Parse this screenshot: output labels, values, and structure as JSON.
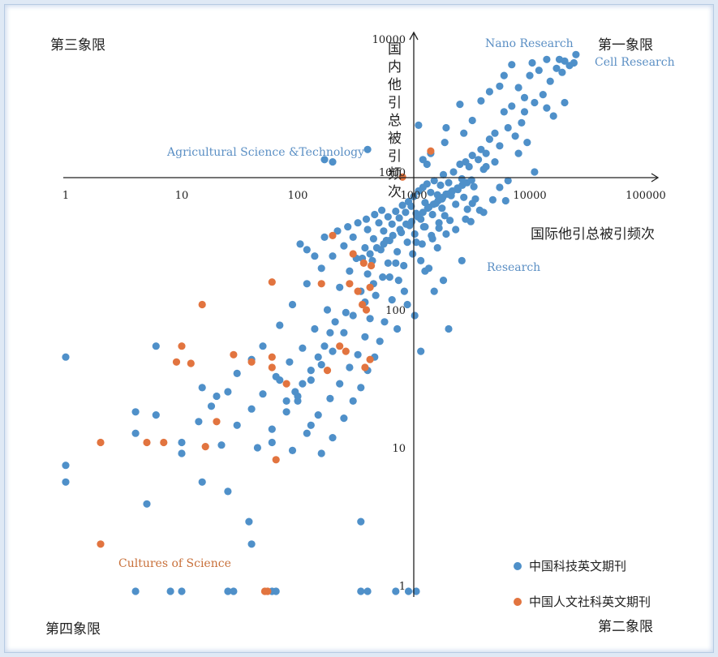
{
  "colors": {
    "science": "#4f90c9",
    "humanities": "#e2743f",
    "axis": "#222222",
    "annotation_blue": "#5b8fc4",
    "annotation_orange": "#c8703a"
  },
  "chart_data": {
    "type": "scatter",
    "x_scale": "log",
    "y_scale": "log",
    "xlabel": "国际他引总被引频次",
    "ylabel": "国内他引总被引频次",
    "x_ticks": [
      1,
      10,
      100,
      1000,
      10000,
      100000
    ],
    "y_ticks": [
      1,
      10,
      100,
      1000,
      10000
    ],
    "xlim": [
      1,
      100000
    ],
    "ylim": [
      1,
      10000
    ],
    "crosshair": {
      "x": 1000,
      "y": 1000
    },
    "legend_position": "bottom-right",
    "quadrants": {
      "q1": "第一象限",
      "q2": "第二象限",
      "q3": "第三象限",
      "q4": "第四象限"
    },
    "annotations": [
      {
        "text": "Nano Research",
        "series": "science"
      },
      {
        "text": "Cell Research",
        "series": "science"
      },
      {
        "text": "Agricultural Science &Technology",
        "series": "science"
      },
      {
        "text": "Research",
        "series": "science"
      },
      {
        "text": "Cultures of Science",
        "series": "humanities"
      }
    ],
    "series": [
      {
        "name": "中国科技英文期刊",
        "points": [
          [
            20000,
            7000
          ],
          [
            25000,
            7800
          ],
          [
            18000,
            7200
          ],
          [
            12000,
            6000
          ],
          [
            22000,
            6500
          ],
          [
            15000,
            5000
          ],
          [
            10000,
            5500
          ],
          [
            8000,
            4500
          ],
          [
            13000,
            4000
          ],
          [
            9000,
            3800
          ],
          [
            11000,
            3500
          ],
          [
            7000,
            3300
          ],
          [
            6000,
            3000
          ],
          [
            14000,
            3200
          ],
          [
            16000,
            2800
          ],
          [
            8500,
            2500
          ],
          [
            6500,
            2300
          ],
          [
            5000,
            2100
          ],
          [
            7500,
            2000
          ],
          [
            4500,
            1900
          ],
          [
            9500,
            1800
          ],
          [
            5500,
            1700
          ],
          [
            3800,
            1600
          ],
          [
            4200,
            1500
          ],
          [
            3200,
            1450
          ],
          [
            3600,
            1350
          ],
          [
            2800,
            1300
          ],
          [
            2500,
            1250
          ],
          [
            3000,
            1200
          ],
          [
            4000,
            1150
          ],
          [
            2200,
            1100
          ],
          [
            1800,
            1050
          ],
          [
            2600,
            980
          ],
          [
            1500,
            950
          ],
          [
            2000,
            920
          ],
          [
            1300,
            900
          ],
          [
            1700,
            880
          ],
          [
            3300,
            860
          ],
          [
            1200,
            850
          ],
          [
            2400,
            820
          ],
          [
            1100,
            800
          ],
          [
            1400,
            780
          ],
          [
            1900,
            760
          ],
          [
            1600,
            750
          ],
          [
            2100,
            740
          ],
          [
            1000,
            730
          ],
          [
            2700,
            720
          ],
          [
            3400,
            700
          ],
          [
            4800,
            690
          ],
          [
            6200,
            680
          ],
          [
            900,
            670
          ],
          [
            1250,
            660
          ],
          [
            1550,
            650
          ],
          [
            2300,
            640
          ],
          [
            800,
            630
          ],
          [
            950,
            620
          ],
          [
            1350,
            610
          ],
          [
            1750,
            600
          ],
          [
            2900,
            590
          ],
          [
            3700,
            580
          ],
          [
            700,
            570
          ],
          [
            850,
            560
          ],
          [
            1050,
            550
          ],
          [
            1450,
            540
          ],
          [
            1850,
            530
          ],
          [
            600,
            520
          ],
          [
            750,
            510
          ],
          [
            1150,
            500
          ],
          [
            2050,
            490
          ],
          [
            3100,
            480
          ],
          [
            500,
            470
          ],
          [
            650,
            460
          ],
          [
            920,
            450
          ],
          [
            1220,
            440
          ],
          [
            1650,
            430
          ],
          [
            400,
            420
          ],
          [
            550,
            410
          ],
          [
            780,
            400
          ],
          [
            1020,
            390
          ],
          [
            1420,
            380
          ],
          [
            300,
            370
          ],
          [
            450,
            360
          ],
          [
            620,
            350
          ],
          [
            880,
            340
          ],
          [
            1180,
            330
          ],
          [
            250,
            320
          ],
          [
            380,
            310
          ],
          [
            520,
            300
          ],
          [
            720,
            290
          ],
          [
            980,
            280
          ],
          [
            200,
            270
          ],
          [
            320,
            260
          ],
          [
            440,
            250
          ],
          [
            600,
            240
          ],
          [
            820,
            230
          ],
          [
            160,
            220
          ],
          [
            280,
            210
          ],
          [
            400,
            200
          ],
          [
            540,
            190
          ],
          [
            740,
            180
          ],
          [
            120,
            170
          ],
          [
            230,
            160
          ],
          [
            350,
            150
          ],
          [
            470,
            140
          ],
          [
            650,
            130
          ],
          [
            90,
            120
          ],
          [
            180,
            110
          ],
          [
            300,
            100
          ],
          [
            420,
            95
          ],
          [
            560,
            90
          ],
          [
            70,
            85
          ],
          [
            140,
            80
          ],
          [
            250,
            75
          ],
          [
            380,
            70
          ],
          [
            510,
            65
          ],
          [
            50,
            60
          ],
          [
            110,
            58
          ],
          [
            200,
            55
          ],
          [
            330,
            52
          ],
          [
            460,
            50
          ],
          [
            40,
            48
          ],
          [
            85,
            46
          ],
          [
            160,
            44
          ],
          [
            280,
            42
          ],
          [
            400,
            40
          ],
          [
            30,
            38
          ],
          [
            65,
            36
          ],
          [
            130,
            34
          ],
          [
            230,
            32
          ],
          [
            350,
            30
          ],
          [
            25,
            28
          ],
          [
            50,
            27
          ],
          [
            100,
            26
          ],
          [
            190,
            25
          ],
          [
            300,
            24
          ],
          [
            18,
            22
          ],
          [
            40,
            21
          ],
          [
            80,
            20
          ],
          [
            150,
            19
          ],
          [
            250,
            18
          ],
          [
            14,
            17
          ],
          [
            30,
            16
          ],
          [
            60,
            15
          ],
          [
            120,
            14
          ],
          [
            200,
            13
          ],
          [
            10,
            12
          ],
          [
            22,
            11.5
          ],
          [
            45,
            11
          ],
          [
            90,
            10.5
          ],
          [
            160,
            10
          ],
          [
            1,
            50
          ],
          [
            6,
            60
          ],
          [
            4,
            20
          ],
          [
            6,
            19
          ],
          [
            4,
            14
          ],
          [
            10,
            10
          ],
          [
            15,
            6.2
          ],
          [
            25,
            5.3
          ],
          [
            5,
            4.3
          ],
          [
            38,
            3.2
          ],
          [
            40,
            2.2
          ],
          [
            1,
            8.2
          ],
          [
            1,
            6.2
          ],
          [
            350,
            3.2
          ],
          [
            130,
            16
          ],
          [
            60,
            12
          ],
          [
            100,
            24
          ],
          [
            70,
            34
          ],
          [
            20,
            26
          ],
          [
            15,
            30
          ],
          [
            4,
            1
          ],
          [
            8,
            1
          ],
          [
            10,
            1
          ],
          [
            25,
            1
          ],
          [
            28,
            1
          ],
          [
            60,
            1
          ],
          [
            65,
            1
          ],
          [
            350,
            1
          ],
          [
            400,
            1
          ],
          [
            700,
            1
          ],
          [
            900,
            1
          ],
          [
            1050,
            1
          ],
          [
            200,
            1300
          ],
          [
            170,
            1350
          ],
          [
            400,
            1600
          ],
          [
            1400,
            1500
          ],
          [
            1100,
            2400
          ],
          [
            1900,
            2300
          ],
          [
            1200,
            1350
          ],
          [
            1300,
            1250
          ],
          [
            2600,
            250
          ],
          [
            1250,
            210
          ],
          [
            700,
            240
          ],
          [
            550,
            330
          ],
          [
            1150,
            55
          ],
          [
            2000,
            80
          ],
          [
            1850,
            1800
          ],
          [
            2700,
            2100
          ],
          [
            3200,
            2600
          ],
          [
            3800,
            3600
          ],
          [
            2500,
            3400
          ],
          [
            4500,
            4200
          ],
          [
            5500,
            4600
          ],
          [
            6000,
            5500
          ],
          [
            9000,
            3000
          ],
          [
            7000,
            6600
          ],
          [
            10500,
            6800
          ],
          [
            14000,
            7200
          ],
          [
            17000,
            6200
          ],
          [
            20000,
            3500
          ],
          [
            24000,
            6800
          ],
          [
            19000,
            5800
          ],
          [
            8000,
            1500
          ],
          [
            5000,
            1300
          ],
          [
            4200,
            1200
          ],
          [
            11000,
            1100
          ],
          [
            6500,
            950
          ],
          [
            5500,
            850
          ],
          [
            2100,
            780
          ],
          [
            1750,
            700
          ],
          [
            3200,
            650
          ],
          [
            4000,
            560
          ],
          [
            2800,
            500
          ],
          [
            1650,
            470
          ],
          [
            1250,
            440
          ],
          [
            2300,
            420
          ],
          [
            1900,
            390
          ],
          [
            1450,
            360
          ],
          [
            1050,
            340
          ],
          [
            1600,
            310
          ],
          [
            1150,
            250
          ],
          [
            1350,
            220
          ],
          [
            1800,
            180
          ],
          [
            1500,
            150
          ],
          [
            880,
            120
          ],
          [
            1020,
            100
          ],
          [
            720,
            80
          ],
          [
            830,
            150
          ],
          [
            620,
            190
          ],
          [
            450,
            170
          ],
          [
            380,
            125
          ],
          [
            260,
            105
          ],
          [
            210,
            90
          ],
          [
            190,
            75
          ],
          [
            170,
            60
          ],
          [
            150,
            50
          ],
          [
            130,
            40
          ],
          [
            110,
            32
          ],
          [
            95,
            28
          ],
          [
            80,
            24
          ],
          [
            360,
            260
          ],
          [
            420,
            280
          ],
          [
            480,
            310
          ],
          [
            580,
            350
          ],
          [
            660,
            380
          ],
          [
            760,
            420
          ],
          [
            860,
            460
          ],
          [
            960,
            480
          ],
          [
            1080,
            520
          ],
          [
            1200,
            560
          ],
          [
            1320,
            600
          ],
          [
            1480,
            640
          ],
          [
            1620,
            680
          ],
          [
            1780,
            720
          ],
          [
            1960,
            760
          ],
          [
            2150,
            800
          ],
          [
            2380,
            840
          ],
          [
            2620,
            880
          ],
          [
            2880,
            920
          ],
          [
            3150,
            960
          ],
          [
            140,
            270
          ],
          [
            120,
            300
          ],
          [
            105,
            330
          ],
          [
            170,
            370
          ],
          [
            220,
            410
          ],
          [
            270,
            440
          ],
          [
            330,
            470
          ],
          [
            390,
            500
          ],
          [
            460,
            540
          ],
          [
            530,
            580
          ]
        ]
      },
      {
        "name": "中国人文社科英文期刊",
        "points": [
          [
            2,
            12
          ],
          [
            5,
            12
          ],
          [
            7,
            12
          ],
          [
            16,
            11.2
          ],
          [
            65,
            9
          ],
          [
            20,
            17
          ],
          [
            12,
            45
          ],
          [
            10,
            60
          ],
          [
            9,
            46
          ],
          [
            15,
            120
          ],
          [
            60,
            50
          ],
          [
            28,
            52
          ],
          [
            60,
            42
          ],
          [
            40,
            46
          ],
          [
            80,
            32
          ],
          [
            180,
            40
          ],
          [
            260,
            55
          ],
          [
            380,
            42
          ],
          [
            420,
            48
          ],
          [
            330,
            150
          ],
          [
            360,
            120
          ],
          [
            390,
            110
          ],
          [
            420,
            160
          ],
          [
            430,
            230
          ],
          [
            280,
            170
          ],
          [
            230,
            60
          ],
          [
            370,
            240
          ],
          [
            160,
            170
          ],
          [
            800,
            1010
          ],
          [
            1400,
            1560
          ],
          [
            300,
            280
          ],
          [
            200,
            380
          ],
          [
            60,
            175
          ],
          [
            52,
            1
          ],
          [
            55,
            1
          ],
          [
            2,
            2.2
          ]
        ]
      }
    ]
  }
}
